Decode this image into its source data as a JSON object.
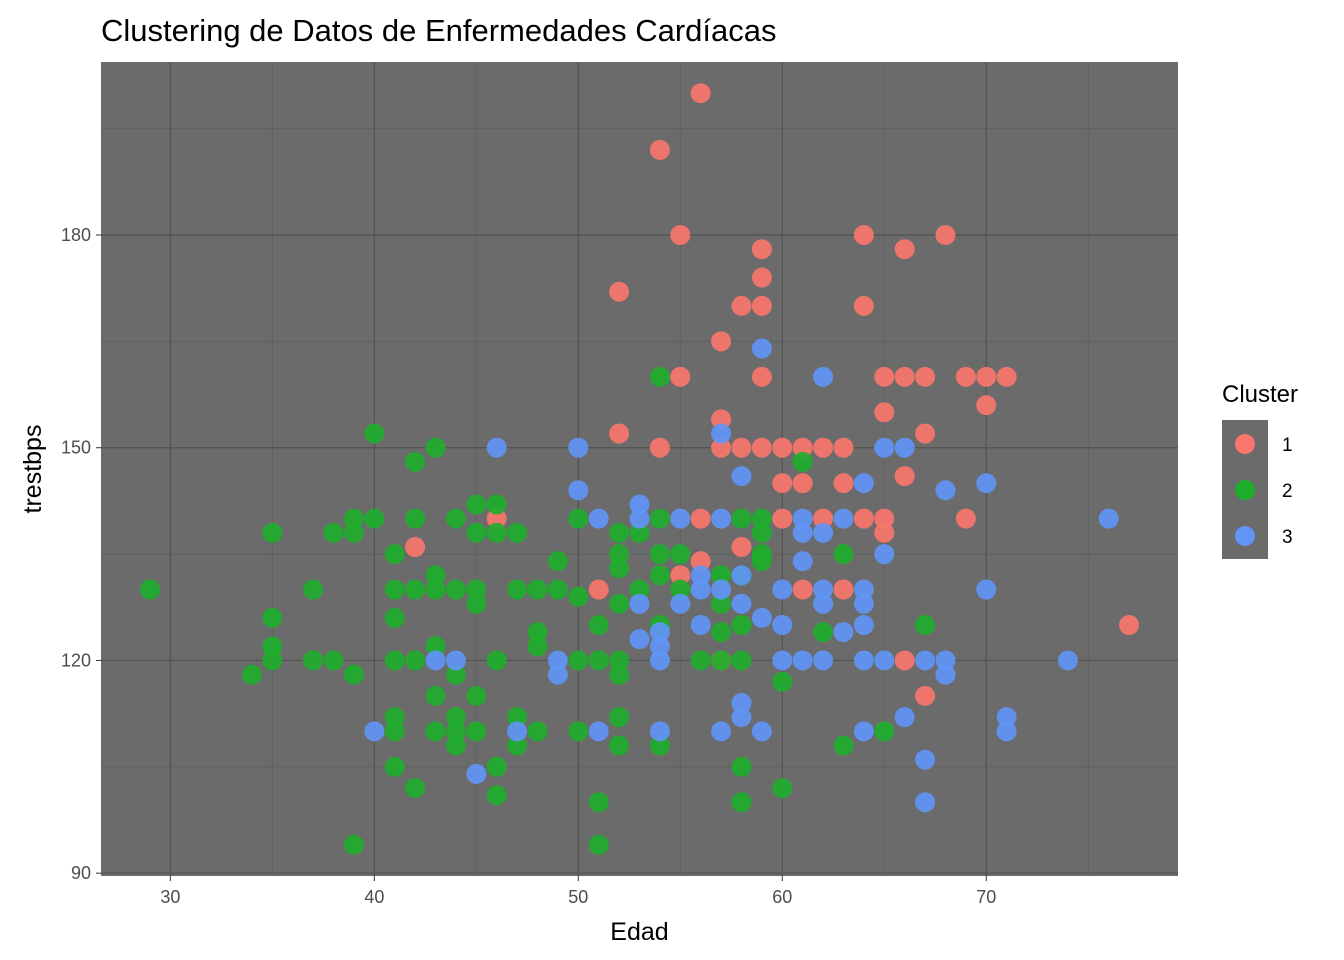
{
  "chart_data": {
    "type": "scatter",
    "title": "Clustering de Datos de Enfermedades Cardíacas",
    "xlabel": "Edad",
    "ylabel": "trestbps",
    "xlim": [
      26.6,
      79.4
    ],
    "ylim": [
      89.6,
      204.4
    ],
    "x_ticks": [
      30,
      40,
      50,
      60,
      70
    ],
    "y_ticks": [
      90,
      120,
      150,
      180
    ],
    "grid": true,
    "legend": {
      "title": "Cluster",
      "position": "right",
      "entries": [
        {
          "label": "1",
          "color": "#f8766d"
        },
        {
          "label": "2",
          "color": "#1fae2c"
        },
        {
          "label": "3",
          "color": "#6195f5"
        }
      ]
    },
    "series": [
      {
        "name": "1",
        "color": "#f8766d",
        "points": [
          [
            56,
            200
          ],
          [
            54,
            192
          ],
          [
            55,
            180
          ],
          [
            64,
            180
          ],
          [
            68,
            180
          ],
          [
            59,
            178
          ],
          [
            66,
            178
          ],
          [
            59,
            174
          ],
          [
            52,
            172
          ],
          [
            58,
            170
          ],
          [
            59,
            170
          ],
          [
            64,
            170
          ],
          [
            57,
            165
          ],
          [
            55,
            160
          ],
          [
            59,
            160
          ],
          [
            65,
            160
          ],
          [
            66,
            160
          ],
          [
            67,
            160
          ],
          [
            69,
            160
          ],
          [
            70,
            160
          ],
          [
            71,
            160
          ],
          [
            70,
            156
          ],
          [
            65,
            155
          ],
          [
            57,
            154
          ],
          [
            52,
            152
          ],
          [
            67,
            152
          ],
          [
            54,
            150
          ],
          [
            57,
            150
          ],
          [
            58,
            150
          ],
          [
            59,
            150
          ],
          [
            60,
            150
          ],
          [
            61,
            150
          ],
          [
            62,
            150
          ],
          [
            63,
            150
          ],
          [
            66,
            146
          ],
          [
            60,
            145
          ],
          [
            61,
            145
          ],
          [
            63,
            145
          ],
          [
            46,
            140
          ],
          [
            56,
            140
          ],
          [
            60,
            140
          ],
          [
            62,
            140
          ],
          [
            64,
            140
          ],
          [
            65,
            140
          ],
          [
            69,
            140
          ],
          [
            65,
            138
          ],
          [
            42,
            136
          ],
          [
            58,
            136
          ],
          [
            56,
            134
          ],
          [
            55,
            132
          ],
          [
            51,
            130
          ],
          [
            61,
            130
          ],
          [
            63,
            130
          ],
          [
            77,
            125
          ],
          [
            57,
            120
          ],
          [
            66,
            120
          ],
          [
            67,
            115
          ]
        ]
      },
      {
        "name": "2",
        "color": "#1fae2c",
        "points": [
          [
            29,
            130
          ],
          [
            34,
            118
          ],
          [
            35,
            138
          ],
          [
            35,
            126
          ],
          [
            35,
            122
          ],
          [
            35,
            120
          ],
          [
            37,
            130
          ],
          [
            37,
            120
          ],
          [
            38,
            138
          ],
          [
            38,
            120
          ],
          [
            39,
            140
          ],
          [
            39,
            138
          ],
          [
            39,
            118
          ],
          [
            39,
            94
          ],
          [
            40,
            152
          ],
          [
            40,
            140
          ],
          [
            41,
            135
          ],
          [
            41,
            130
          ],
          [
            41,
            126
          ],
          [
            41,
            120
          ],
          [
            41,
            112
          ],
          [
            41,
            110
          ],
          [
            41,
            105
          ],
          [
            42,
            148
          ],
          [
            42,
            140
          ],
          [
            42,
            130
          ],
          [
            42,
            120
          ],
          [
            42,
            102
          ],
          [
            43,
            150
          ],
          [
            43,
            132
          ],
          [
            43,
            130
          ],
          [
            43,
            122
          ],
          [
            43,
            115
          ],
          [
            43,
            110
          ],
          [
            44,
            140
          ],
          [
            44,
            130
          ],
          [
            44,
            118
          ],
          [
            44,
            112
          ],
          [
            44,
            110
          ],
          [
            44,
            108
          ],
          [
            45,
            142
          ],
          [
            45,
            138
          ],
          [
            45,
            130
          ],
          [
            45,
            128
          ],
          [
            45,
            115
          ],
          [
            45,
            110
          ],
          [
            46,
            142
          ],
          [
            46,
            138
          ],
          [
            46,
            120
          ],
          [
            46,
            105
          ],
          [
            46,
            101
          ],
          [
            47,
            138
          ],
          [
            47,
            130
          ],
          [
            47,
            112
          ],
          [
            47,
            108
          ],
          [
            48,
            130
          ],
          [
            48,
            124
          ],
          [
            48,
            122
          ],
          [
            48,
            110
          ],
          [
            49,
            134
          ],
          [
            49,
            130
          ],
          [
            50,
            140
          ],
          [
            50,
            129
          ],
          [
            50,
            120
          ],
          [
            50,
            110
          ],
          [
            51,
            125
          ],
          [
            51,
            120
          ],
          [
            51,
            100
          ],
          [
            51,
            94
          ],
          [
            52,
            138
          ],
          [
            52,
            135
          ],
          [
            52,
            133
          ],
          [
            52,
            128
          ],
          [
            52,
            120
          ],
          [
            52,
            118
          ],
          [
            52,
            112
          ],
          [
            52,
            108
          ],
          [
            53,
            138
          ],
          [
            53,
            130
          ],
          [
            54,
            160
          ],
          [
            54,
            140
          ],
          [
            54,
            135
          ],
          [
            54,
            132
          ],
          [
            54,
            125
          ],
          [
            54,
            108
          ],
          [
            55,
            135
          ],
          [
            55,
            130
          ],
          [
            56,
            120
          ],
          [
            57,
            132
          ],
          [
            57,
            128
          ],
          [
            57,
            124
          ],
          [
            57,
            120
          ],
          [
            58,
            140
          ],
          [
            58,
            132
          ],
          [
            58,
            125
          ],
          [
            58,
            120
          ],
          [
            58,
            105
          ],
          [
            58,
            100
          ],
          [
            59,
            140
          ],
          [
            59,
            138
          ],
          [
            59,
            135
          ],
          [
            59,
            134
          ],
          [
            60,
            117
          ],
          [
            60,
            102
          ],
          [
            61,
            148
          ],
          [
            62,
            124
          ],
          [
            63,
            135
          ],
          [
            63,
            108
          ],
          [
            65,
            110
          ],
          [
            67,
            125
          ]
        ]
      },
      {
        "name": "3",
        "color": "#6195f5",
        "points": [
          [
            40,
            110
          ],
          [
            43,
            120
          ],
          [
            44,
            120
          ],
          [
            45,
            104
          ],
          [
            46,
            150
          ],
          [
            47,
            110
          ],
          [
            49,
            120
          ],
          [
            49,
            118
          ],
          [
            50,
            150
          ],
          [
            50,
            144
          ],
          [
            51,
            140
          ],
          [
            51,
            110
          ],
          [
            53,
            142
          ],
          [
            53,
            140
          ],
          [
            53,
            128
          ],
          [
            53,
            123
          ],
          [
            54,
            124
          ],
          [
            54,
            122
          ],
          [
            54,
            120
          ],
          [
            54,
            110
          ],
          [
            55,
            140
          ],
          [
            55,
            128
          ],
          [
            56,
            132
          ],
          [
            56,
            130
          ],
          [
            56,
            125
          ],
          [
            57,
            152
          ],
          [
            57,
            140
          ],
          [
            57,
            130
          ],
          [
            57,
            110
          ],
          [
            58,
            146
          ],
          [
            58,
            132
          ],
          [
            58,
            128
          ],
          [
            58,
            114
          ],
          [
            58,
            112
          ],
          [
            59,
            164
          ],
          [
            59,
            126
          ],
          [
            59,
            110
          ],
          [
            60,
            130
          ],
          [
            60,
            125
          ],
          [
            60,
            120
          ],
          [
            61,
            140
          ],
          [
            61,
            138
          ],
          [
            61,
            134
          ],
          [
            61,
            120
          ],
          [
            62,
            160
          ],
          [
            62,
            138
          ],
          [
            62,
            130
          ],
          [
            62,
            128
          ],
          [
            62,
            120
          ],
          [
            63,
            140
          ],
          [
            63,
            124
          ],
          [
            64,
            145
          ],
          [
            64,
            130
          ],
          [
            64,
            128
          ],
          [
            64,
            125
          ],
          [
            64,
            120
          ],
          [
            64,
            110
          ],
          [
            65,
            150
          ],
          [
            65,
            135
          ],
          [
            65,
            120
          ],
          [
            66,
            150
          ],
          [
            66,
            112
          ],
          [
            67,
            120
          ],
          [
            67,
            106
          ],
          [
            67,
            100
          ],
          [
            68,
            144
          ],
          [
            68,
            120
          ],
          [
            68,
            118
          ],
          [
            70,
            145
          ],
          [
            70,
            130
          ],
          [
            71,
            112
          ],
          [
            71,
            110
          ],
          [
            74,
            120
          ],
          [
            76,
            140
          ]
        ]
      }
    ]
  }
}
